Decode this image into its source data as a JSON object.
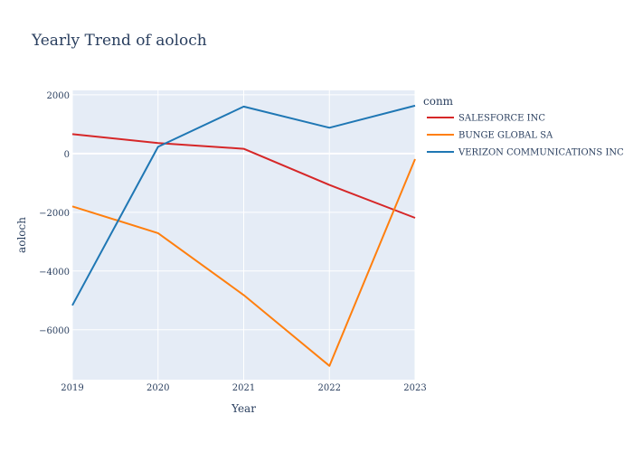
{
  "chart_data": {
    "type": "line",
    "title": "Yearly Trend of aoloch",
    "xlabel": "Year",
    "ylabel": "aoloch",
    "x": [
      2019,
      2020,
      2021,
      2022,
      2023
    ],
    "x_ticks": [
      "2019",
      "2020",
      "2021",
      "2022",
      "2023"
    ],
    "y_ticks": [
      "2000",
      "0",
      "−2000",
      "−4000",
      "−6000"
    ],
    "y_tick_values": [
      2000,
      0,
      -2000,
      -4000,
      -6000
    ],
    "ylim": [
      -7700,
      2150
    ],
    "legend_title": "conm",
    "legend_position": "right",
    "grid": true,
    "plot_background": "#e5ecf6",
    "series": [
      {
        "name": "SALESFORCE INC",
        "color": "#d62728",
        "values": [
          660,
          360,
          160,
          -1070,
          -2190
        ]
      },
      {
        "name": "BUNGE GLOBAL SA",
        "color": "#ff7f0e",
        "values": [
          -1800,
          -2710,
          -4820,
          -7230,
          -190
        ]
      },
      {
        "name": "VERIZON COMMUNICATIONS INC",
        "color": "#1f77b4",
        "values": [
          -5170,
          230,
          1600,
          880,
          1630
        ]
      }
    ]
  }
}
